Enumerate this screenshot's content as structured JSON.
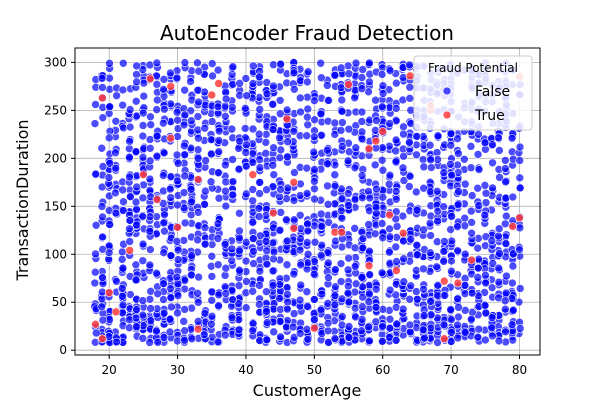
{
  "chart_data": {
    "type": "scatter",
    "title": "AutoEncoder Fraud Detection",
    "xlabel": "CustomerAge",
    "ylabel": "TransactionDuration",
    "xlim": [
      15,
      83
    ],
    "ylim": [
      -5,
      315
    ],
    "xticks": [
      20,
      30,
      40,
      50,
      60,
      70,
      80
    ],
    "yticks": [
      0,
      50,
      100,
      150,
      200,
      250,
      300
    ],
    "grid": true,
    "legend": {
      "title": "Fraud Potential",
      "placement": "top-right",
      "entries": [
        "False",
        "True"
      ]
    },
    "series": [
      {
        "name": "False",
        "color": "#0000ff",
        "points": "generated-dense",
        "count": 2400,
        "x_range": [
          18,
          80
        ],
        "y_range": [
          8,
          300
        ]
      },
      {
        "name": "True",
        "color": "#ff3b3b",
        "points": [
          [
            18,
            27
          ],
          [
            19,
            12
          ],
          [
            19,
            263
          ],
          [
            20,
            60
          ],
          [
            21,
            40
          ],
          [
            23,
            104
          ],
          [
            25,
            183
          ],
          [
            26,
            283
          ],
          [
            27,
            157
          ],
          [
            29,
            221
          ],
          [
            29,
            275
          ],
          [
            30,
            128
          ],
          [
            33,
            22
          ],
          [
            33,
            178
          ],
          [
            35,
            266
          ],
          [
            36,
            278
          ],
          [
            41,
            183
          ],
          [
            44,
            143
          ],
          [
            46,
            241
          ],
          [
            47,
            127
          ],
          [
            47,
            175
          ],
          [
            50,
            23
          ],
          [
            53,
            123
          ],
          [
            54,
            123
          ],
          [
            55,
            277
          ],
          [
            58,
            88
          ],
          [
            58,
            210
          ],
          [
            59,
            218
          ],
          [
            60,
            228
          ],
          [
            61,
            141
          ],
          [
            62,
            83
          ],
          [
            63,
            122
          ],
          [
            64,
            286
          ],
          [
            67,
            250
          ],
          [
            67,
            255
          ],
          [
            69,
            12
          ],
          [
            69,
            72
          ],
          [
            71,
            70
          ],
          [
            73,
            94
          ],
          [
            79,
            129
          ],
          [
            80,
            138
          ],
          [
            80,
            285
          ]
        ]
      }
    ]
  }
}
